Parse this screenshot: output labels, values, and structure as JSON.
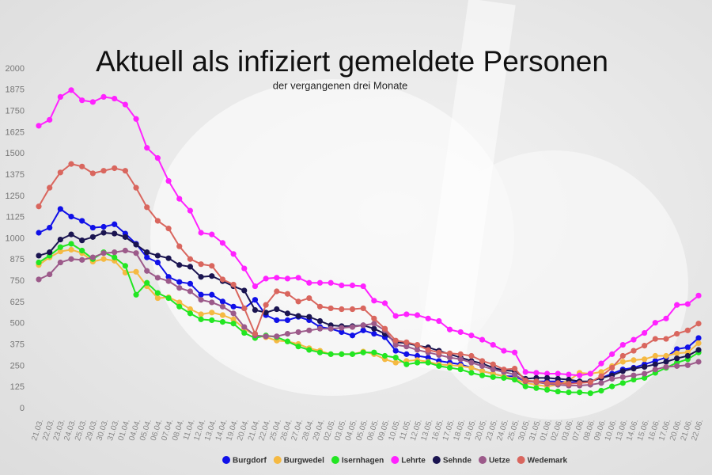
{
  "chart_data": {
    "type": "line",
    "title": "Aktuell als infiziert gemeldete Personen",
    "subtitle": "der vergangenen drei Monate",
    "categories": [
      "21.03.",
      "22.03.",
      "23.03.",
      "24.03.",
      "25.03.",
      "29.03.",
      "30.03.",
      "31.03.",
      "01.04.",
      "04.04.",
      "05.04.",
      "06.04.",
      "07.04.",
      "08.04.",
      "11.04.",
      "12.04.",
      "13.04.",
      "14.04.",
      "19.04.",
      "20.04.",
      "21.04.",
      "22.04.",
      "25.04.",
      "26.04.",
      "27.04.",
      "28.04.",
      "29.04.",
      "02.05.",
      "03.05.",
      "04.05.",
      "05.05.",
      "06.05.",
      "09.05.",
      "10.05.",
      "11.05.",
      "12.05.",
      "13.05.",
      "16.05.",
      "17.05.",
      "18.05.",
      "19.05.",
      "20.05.",
      "23.05.",
      "24.05.",
      "25.05.",
      "30.05.",
      "31.05.",
      "01.06.",
      "02.06.",
      "03.06.",
      "07.06.",
      "08.06.",
      "09.06.",
      "10.06.",
      "13.06.",
      "14.06.",
      "15.06.",
      "16.06.",
      "17.06.",
      "20.06.",
      "21.06.",
      "22.06."
    ],
    "series": [
      {
        "name": "Burgdorf",
        "color": "#1010e8",
        "values": [
          1035,
          1065,
          1175,
          1130,
          1105,
          1065,
          1070,
          1085,
          1030,
          970,
          890,
          860,
          775,
          745,
          735,
          670,
          670,
          630,
          600,
          590,
          640,
          550,
          520,
          520,
          540,
          520,
          480,
          470,
          450,
          430,
          460,
          440,
          420,
          340,
          320,
          310,
          300,
          280,
          270,
          260,
          240,
          220,
          205,
          190,
          190,
          160,
          160,
          160,
          160,
          155,
          155,
          160,
          180,
          205,
          230,
          240,
          260,
          280,
          300,
          350,
          360,
          415
        ]
      },
      {
        "name": "Burgwedel",
        "color": "#f5b942",
        "values": [
          845,
          890,
          925,
          935,
          915,
          865,
          880,
          870,
          800,
          805,
          720,
          650,
          655,
          625,
          585,
          555,
          565,
          550,
          525,
          470,
          430,
          420,
          400,
          395,
          380,
          355,
          340,
          320,
          320,
          320,
          335,
          320,
          290,
          270,
          280,
          285,
          275,
          260,
          255,
          250,
          240,
          220,
          205,
          190,
          175,
          150,
          140,
          130,
          140,
          165,
          210,
          205,
          215,
          250,
          275,
          285,
          290,
          310,
          310,
          325,
          330,
          385
        ]
      },
      {
        "name": "Isernhagen",
        "color": "#22e622",
        "values": [
          860,
          900,
          950,
          970,
          930,
          880,
          920,
          890,
          840,
          670,
          740,
          680,
          650,
          600,
          560,
          525,
          520,
          510,
          500,
          445,
          415,
          430,
          420,
          395,
          365,
          345,
          330,
          320,
          320,
          320,
          330,
          330,
          310,
          300,
          260,
          270,
          270,
          250,
          240,
          230,
          210,
          195,
          185,
          180,
          170,
          130,
          120,
          110,
          100,
          95,
          95,
          90,
          105,
          130,
          150,
          170,
          180,
          210,
          240,
          270,
          290,
          330
        ]
      },
      {
        "name": "Lehrte",
        "color": "#ff22ff",
        "values": [
          1665,
          1700,
          1835,
          1875,
          1815,
          1805,
          1835,
          1825,
          1790,
          1705,
          1535,
          1475,
          1340,
          1235,
          1165,
          1035,
          1025,
          975,
          910,
          825,
          720,
          765,
          770,
          765,
          770,
          740,
          740,
          740,
          725,
          725,
          720,
          635,
          620,
          545,
          555,
          550,
          530,
          515,
          465,
          450,
          430,
          405,
          375,
          340,
          330,
          215,
          210,
          205,
          205,
          200,
          195,
          205,
          265,
          320,
          375,
          405,
          445,
          505,
          530,
          610,
          615,
          665
        ]
      },
      {
        "name": "Sehnde",
        "color": "#1a1450",
        "values": [
          900,
          920,
          995,
          1025,
          990,
          1010,
          1035,
          1030,
          1010,
          965,
          920,
          900,
          885,
          845,
          835,
          775,
          780,
          750,
          720,
          695,
          580,
          565,
          585,
          560,
          545,
          540,
          515,
          490,
          485,
          485,
          490,
          470,
          440,
          390,
          385,
          370,
          360,
          340,
          320,
          300,
          280,
          265,
          240,
          225,
          220,
          175,
          180,
          180,
          175,
          170,
          160,
          160,
          180,
          195,
          220,
          235,
          245,
          260,
          275,
          295,
          310,
          345
        ]
      },
      {
        "name": "Uetze",
        "color": "#9c5a8a",
        "values": [
          760,
          790,
          860,
          880,
          875,
          890,
          915,
          920,
          930,
          915,
          810,
          770,
          750,
          710,
          690,
          640,
          625,
          600,
          560,
          480,
          430,
          425,
          425,
          440,
          450,
          460,
          470,
          470,
          475,
          480,
          490,
          500,
          460,
          375,
          365,
          345,
          330,
          315,
          300,
          290,
          270,
          250,
          230,
          215,
          200,
          160,
          155,
          145,
          140,
          135,
          135,
          140,
          150,
          175,
          185,
          195,
          205,
          230,
          245,
          250,
          255,
          275
        ]
      },
      {
        "name": "Wedemark",
        "color": "#d9665e",
        "values": [
          1190,
          1300,
          1390,
          1440,
          1425,
          1385,
          1400,
          1415,
          1400,
          1300,
          1185,
          1105,
          1060,
          955,
          880,
          850,
          840,
          760,
          730,
          590,
          440,
          610,
          690,
          675,
          630,
          650,
          600,
          590,
          585,
          585,
          590,
          530,
          470,
          400,
          390,
          375,
          345,
          330,
          325,
          320,
          310,
          280,
          260,
          230,
          235,
          165,
          160,
          150,
          150,
          145,
          150,
          155,
          190,
          240,
          310,
          340,
          370,
          410,
          410,
          440,
          460,
          500
        ]
      }
    ],
    "ylim": [
      0,
      2000
    ],
    "yticks": [
      0,
      125,
      250,
      375,
      500,
      625,
      750,
      875,
      1000,
      1125,
      1250,
      1375,
      1500,
      1625,
      1750,
      1875,
      2000
    ],
    "grid": false,
    "legend": "bottom"
  }
}
